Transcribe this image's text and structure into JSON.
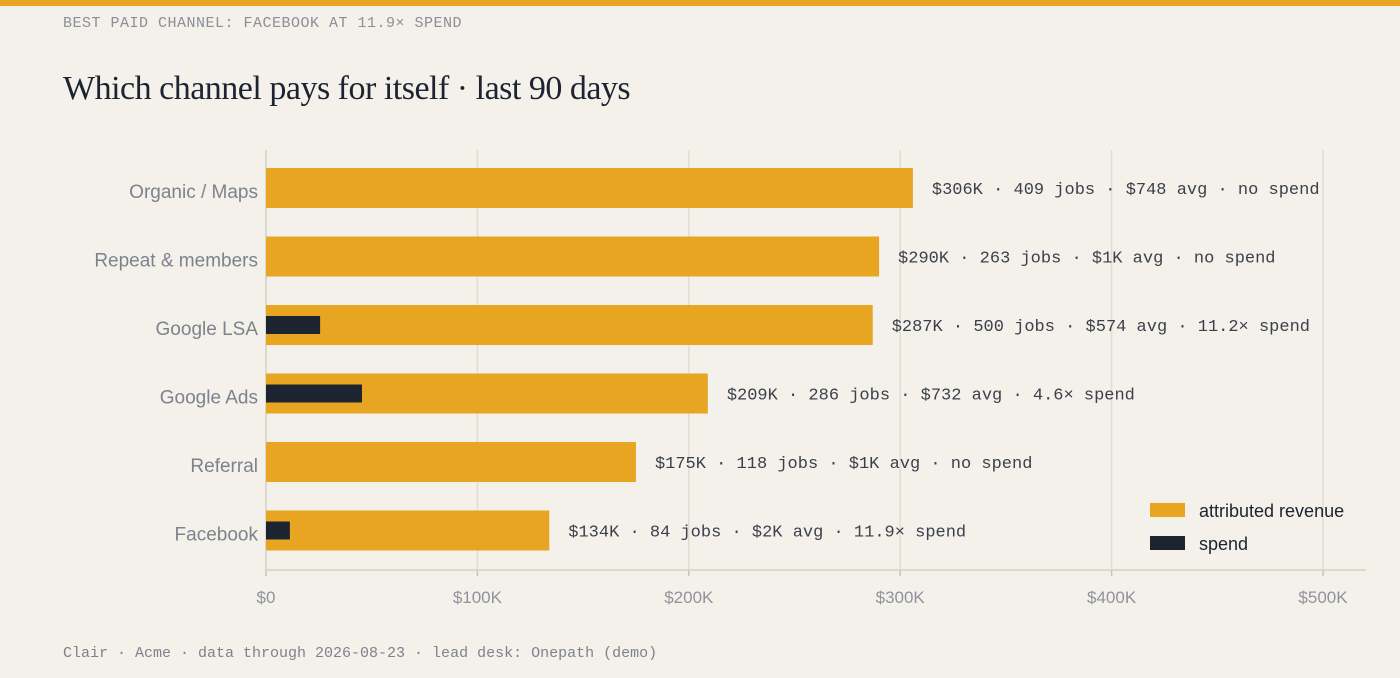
{
  "kicker": "BEST PAID CHANNEL: FACEBOOK AT 11.9× SPEND",
  "title": "Which channel pays for itself · last 90 days",
  "footer": "Clair · Acme · data through 2026-08-23 · lead desk: Onepath (demo)",
  "colors": {
    "accent": "#e8a521",
    "revenue": "#e8a521",
    "spend": "#1c2331",
    "grid": "#e1dcd4",
    "background": "#f4f0ea"
  },
  "chart_data": {
    "type": "bar",
    "orientation": "horizontal",
    "categories": [
      "Organic / Maps",
      "Repeat & members",
      "Google LSA",
      "Google Ads",
      "Referral",
      "Facebook"
    ],
    "series": [
      {
        "name": "attributed revenue",
        "color": "#e8a521",
        "values": [
          306000,
          290000,
          287000,
          209000,
          175000,
          134000
        ]
      },
      {
        "name": "spend",
        "color": "#1c2331",
        "values": [
          0,
          0,
          25600,
          45400,
          0,
          11300
        ]
      }
    ],
    "data_labels": [
      "$306K · 409 jobs · $748 avg · no spend",
      "$290K · 263 jobs · $1K avg · no spend",
      "$287K · 500 jobs · $574 avg · 11.2× spend",
      "$209K · 286 jobs · $732 avg · 4.6× spend",
      "$175K · 118 jobs · $1K avg · no spend",
      "$134K · 84 jobs · $2K avg · 11.9× spend"
    ],
    "xlim": [
      0,
      500000
    ],
    "x_ticks": [
      0,
      100000,
      200000,
      300000,
      400000,
      500000
    ],
    "x_tick_labels": [
      "$0",
      "$100K",
      "$200K",
      "$300K",
      "$400K",
      "$500K"
    ],
    "grid": true,
    "legend_position": "bottom-right"
  }
}
